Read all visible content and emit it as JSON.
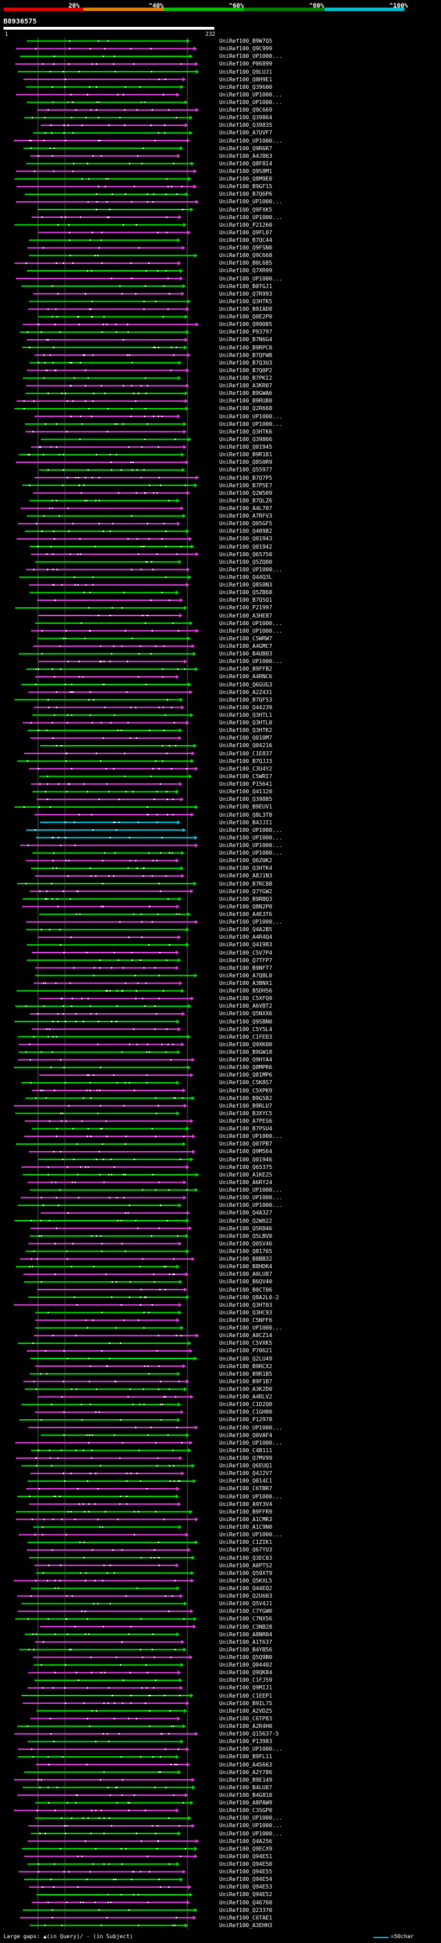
{
  "scale": {
    "labels": [
      "20%",
      "^40%",
      "^60%",
      "^80%",
      "^100%"
    ],
    "colors": [
      "#e00000",
      "#e08000",
      "#00c000",
      "#008000",
      "#00c0d0"
    ]
  },
  "query": {
    "id": "B8936575",
    "range_start": "1",
    "range_end": "232"
  },
  "colors": {
    "hit_green": "#00e000",
    "hit_magenta": "#e040e0",
    "hit_cyan": "#00c8e0",
    "gap_white": "#ffffff",
    "row_background": "#101840"
  },
  "hits": [
    "UniRef100_B9W7Q5",
    "UniRef100_Q9C999",
    "UniRef100_UP1000...",
    "UniRef100_P06899",
    "UniRef100_Q9LUJ1",
    "UniRef100_Q8H9E1",
    "UniRef100_Q39600",
    "UniRef100_UP1000...",
    "UniRef100_UP1000...",
    "UniRef100_Q9C669",
    "UniRef100_Q39864",
    "UniRef100_Q39835",
    "UniRef100_A7UVF7",
    "UniRef100_UP1000...",
    "UniRef100_Q9R6R7",
    "UniRef100_A4J863",
    "UniRef100_Q8F8I4",
    "UniRef100_Q9S8M1",
    "UniRef100_Q8M9E0",
    "UniRef100_B9GF15",
    "UniRef100_B7Q6P6",
    "UniRef100_UP1000...",
    "UniRef100_Q9FXK5",
    "UniRef100_UP1000...",
    "UniRef100_P21260",
    "UniRef100_Q9FL07",
    "UniRef100_B7QC44",
    "UniRef100_Q9FSN0",
    "UniRef100_Q9C668",
    "UniRef100_B0L685",
    "UniRef100_Q7XR99",
    "UniRef100_UP1000...",
    "UniRef100_B0TGJ1",
    "UniRef100_Q7R993",
    "UniRef100_Q3HTK5",
    "UniRef100_B9IAD8",
    "UniRef100_Q0E2P0",
    "UniRef100_Q99085",
    "UniRef100_P93797",
    "UniRef100_B7N6G4",
    "UniRef100_B9RPC0",
    "UniRef100_B7QFW8",
    "UniRef100_B7Q3U3",
    "UniRef100_B7Q0P2",
    "UniRef100_B7PKI2",
    "UniRef100_A3KR07",
    "UniRef100_B9GWA6",
    "UniRef100_B9RU80",
    "UniRef100_Q2R668",
    "UniRef100_UP1000...",
    "UniRef100_UP1000...",
    "UniRef100_Q3HTK6",
    "UniRef100_Q39866",
    "UniRef100_Q01945",
    "UniRef100_B9R181",
    "UniRef100_Q8S0R9",
    "UniRef100_Q55977",
    "UniRef100_B7Q7P5",
    "UniRef100_B7P5E7",
    "UniRef100_Q2W509",
    "UniRef100_B7QLZ6",
    "UniRef100_A4L707",
    "UniRef100_A7RFV3",
    "UniRef100_Q05GF5",
    "UniRef100_Q40982",
    "UniRef100_Q01943",
    "UniRef100_Q01942",
    "UniRef100_Q65750",
    "UniRef100_Q5ZQ00",
    "UniRef100_UP1000...",
    "UniRef100_Q44Q3L",
    "UniRef100_Q8S0N3",
    "UniRef100_Q5ZB68",
    "UniRef100_B7Q5Q1",
    "UniRef100_P21997",
    "UniRef100_A3HE87",
    "UniRef100_UP1000...",
    "UniRef100_UP1000...",
    "UniRef100_C5WRW7",
    "UniRef100_A4GMC7",
    "UniRef100_B4UB03",
    "UniRef100_UP1000...",
    "UniRef100_B9FFB2",
    "UniRef100_A4RNC6",
    "UniRef100_Q6GUG3",
    "UniRef100_A2Z431",
    "UniRef100_B7QF53",
    "UniRef100_Q44239",
    "UniRef100_Q3HTL1",
    "UniRef100_Q3HTL0",
    "UniRef100_Q3HTK2",
    "UniRef100_Q010M7",
    "UniRef100_Q04216",
    "UniRef100_C1E837",
    "UniRef100_B7QJJ3",
    "UniRef100_C3U4Y2",
    "UniRef100_C5WRI7",
    "UniRef100_P15641",
    "UniRef100_Q41120",
    "UniRef100_Q39885",
    "UniRef100_B9EUV1",
    "UniRef100_Q8L3T8",
    "UniRef100_B4JJI1",
    "UniRef100_UP1000...",
    "UniRef100_UP1000...",
    "UniRef100_UP1000...",
    "UniRef100_UP1000...",
    "UniRef100_Q6Z0K2",
    "UniRef100_Q3HTK4",
    "UniRef100_A8J1N3",
    "UniRef100_B7RC88",
    "UniRef100_Q7YGW2",
    "UniRef100_B9RBQ3",
    "UniRef100_Q8N2P0",
    "UniRef100_A4E3T6",
    "UniRef100_UP1000...",
    "UniRef100_Q4A2B5",
    "UniRef100_A4R4Q4",
    "UniRef100_Q41983",
    "UniRef100_C5V7P4",
    "UniRef100_Q7TFP7",
    "UniRef100_B9NFT7",
    "UniRef100_A7Q8L0",
    "UniRef100_A3BNX1",
    "UniRef100_B5DH56",
    "UniRef100_C5XFQ9",
    "UniRef100_A6VBT2",
    "UniRef100_Q5NXX6",
    "UniRef100_Q9SBN0",
    "UniRef100_C5Y5L4",
    "UniRef100_C1FED3",
    "UniRef100_Q9XK00",
    "UniRef100_B9GW18",
    "UniRef100_Q9HYA4",
    "UniRef100_Q8MPR6",
    "UniRef100_Q81MP6",
    "UniRef100_C5K8S7",
    "UniRef100_C5XPK9",
    "UniRef100_B9G582",
    "UniRef100_B9RLU7",
    "UniRef100_B3XYC5",
    "UniRef100_A7PES6",
    "UniRef100_B7PSU4",
    "UniRef100_UP1000...",
    "UniRef100_Q07PB7",
    "UniRef100_Q9M564",
    "UniRef100_Q01946",
    "UniRef100_Q65375",
    "UniRef100_A1KE25",
    "UniRef100_A6RY24",
    "UniRef100_UP1000...",
    "UniRef100_UP1000...",
    "UniRef100_UP1000...",
    "UniRef100_Q4A327",
    "UniRef100_Q2W022",
    "UniRef100_Q5R846",
    "UniRef100_Q5LBV0",
    "UniRef100_Q0SV46",
    "UniRef100_Q81765",
    "UniRef100_B8BB32",
    "UniRef100_B8HDK4",
    "UniRef100_A0LU87",
    "UniRef100_B6QV40",
    "UniRef100_B0CT06",
    "UniRef100_Q8A2L0-2",
    "UniRef100_Q3HT03",
    "UniRef100_Q3HC93",
    "UniRef100_C5NFF6",
    "UniRef100_UP1000...",
    "UniRef100_A0CZ14",
    "UniRef100_C5VXK5",
    "UniRef100_P70621",
    "UniRef100_Q2LU49",
    "UniRef100_B9RCX2",
    "UniRef100_B9R1B5",
    "UniRef100_B9F1B7",
    "UniRef100_A3K2D0",
    "UniRef100_A4RLV2",
    "UniRef100_C1D2Q0",
    "UniRef100_C1GH00",
    "UniRef100_P12978",
    "UniRef100_UP1000...",
    "UniRef100_Q0VAF4",
    "UniRef100_UP1000...",
    "UniRef100_C4B111",
    "UniRef100_Q7MV99",
    "UniRef100_Q6EUQ1",
    "UniRef100_Q4J2V7",
    "UniRef100_Q014C1",
    "UniRef100_C6TBR7",
    "UniRef100_UP1000...",
    "UniRef100_A9Y3V4",
    "UniRef100_B9FFR9",
    "UniRef100_A1CMR3",
    "UniRef100_A1C9N0",
    "UniRef100_UP1000...",
    "UniRef100_C1ZIK1",
    "UniRef100_Q67YU3",
    "UniRef100_Q3EC03",
    "UniRef100_A0PTS2",
    "UniRef100_Q59XT9",
    "UniRef100_Q5KXL5",
    "UniRef100_Q44EQ2",
    "UniRef100_Q2U603",
    "UniRef100_Q5V4J1",
    "UniRef100_C7YGW0",
    "UniRef100_C7NX56",
    "UniRef100_C3NB28",
    "UniRef100_A8NR04",
    "UniRef100_A1T637",
    "UniRef100_B4YB56",
    "UniRef100_Q5Q9B0",
    "UniRef100_Q04402",
    "UniRef100_Q9QK84",
    "UniRef100_C1FJ59",
    "UniRef100_Q9MIJ1",
    "UniRef100_C1EEP1",
    "UniRef100_B9IL75",
    "UniRef100_A2VDZ5",
    "UniRef100_C6TP83",
    "UniRef100_A2R4H0",
    "UniRef100_Q15637-5",
    "UniRef100_P13983",
    "UniRef100_UP1000...",
    "UniRef100_B9FL11",
    "UniRef100_A4S663",
    "UniRef100_A2Y786",
    "UniRef100_B9E149",
    "UniRef100_B4LU87",
    "UniRef100_B4G810",
    "UniRef100_A8PAW9",
    "UniRef100_C3SGP0",
    "UniRef100_UP1000...",
    "UniRef100_UP1000...",
    "UniRef100_UP1000...",
    "UniRef100_Q4A256",
    "UniRef100_Q9ECX9",
    "UniRef100_Q94E51",
    "UniRef100_Q94E50",
    "UniRef100_Q94E55",
    "UniRef100_Q94E54",
    "UniRef100_Q94E53",
    "UniRef100_Q94E52",
    "UniRef100_Q46760",
    "UniRef100_Q23370",
    "UniRef100_C6TAE1",
    "UniRef100_A3EHH3"
  ],
  "legend": {
    "gaps": "Large gaps: ▲(in Query)/ - (in Subject)",
    "scale": "=50char"
  }
}
